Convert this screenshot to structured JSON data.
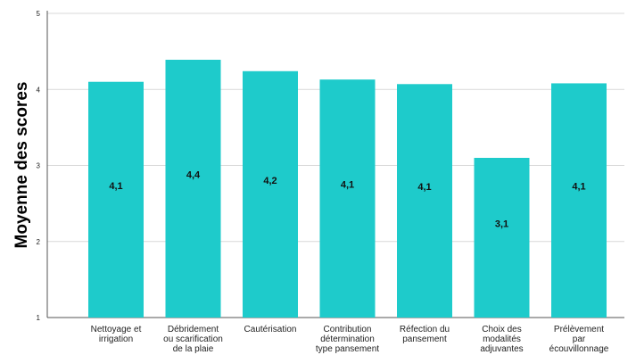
{
  "chart_data": {
    "type": "bar",
    "ylabel": "Moyenne des scores",
    "xlabel": "",
    "ylim": [
      1,
      5
    ],
    "yticks": [
      1,
      2,
      3,
      4,
      5
    ],
    "grid": "horizontal",
    "legend": "none",
    "bar_color": "#1ECBCB",
    "categories": [
      [
        "Nettoyage et",
        "irrigation"
      ],
      [
        "Débridement",
        "ou scarification",
        "de la plaie"
      ],
      [
        "Cautérisation"
      ],
      [
        "Contribution",
        "détermination",
        "type pansement"
      ],
      [
        "Réfection du",
        "pansement"
      ],
      [
        "Choix des",
        "modalités",
        "adjuvantes"
      ],
      [
        "Prélèvement",
        "par",
        "écouvillonnage"
      ]
    ],
    "values": [
      4.1,
      4.39,
      4.24,
      4.13,
      4.07,
      3.1,
      4.08
    ],
    "data_labels": [
      "4,1",
      "4,4",
      "4,2",
      "4,1",
      "4,1",
      "3,1",
      "4,1"
    ]
  }
}
